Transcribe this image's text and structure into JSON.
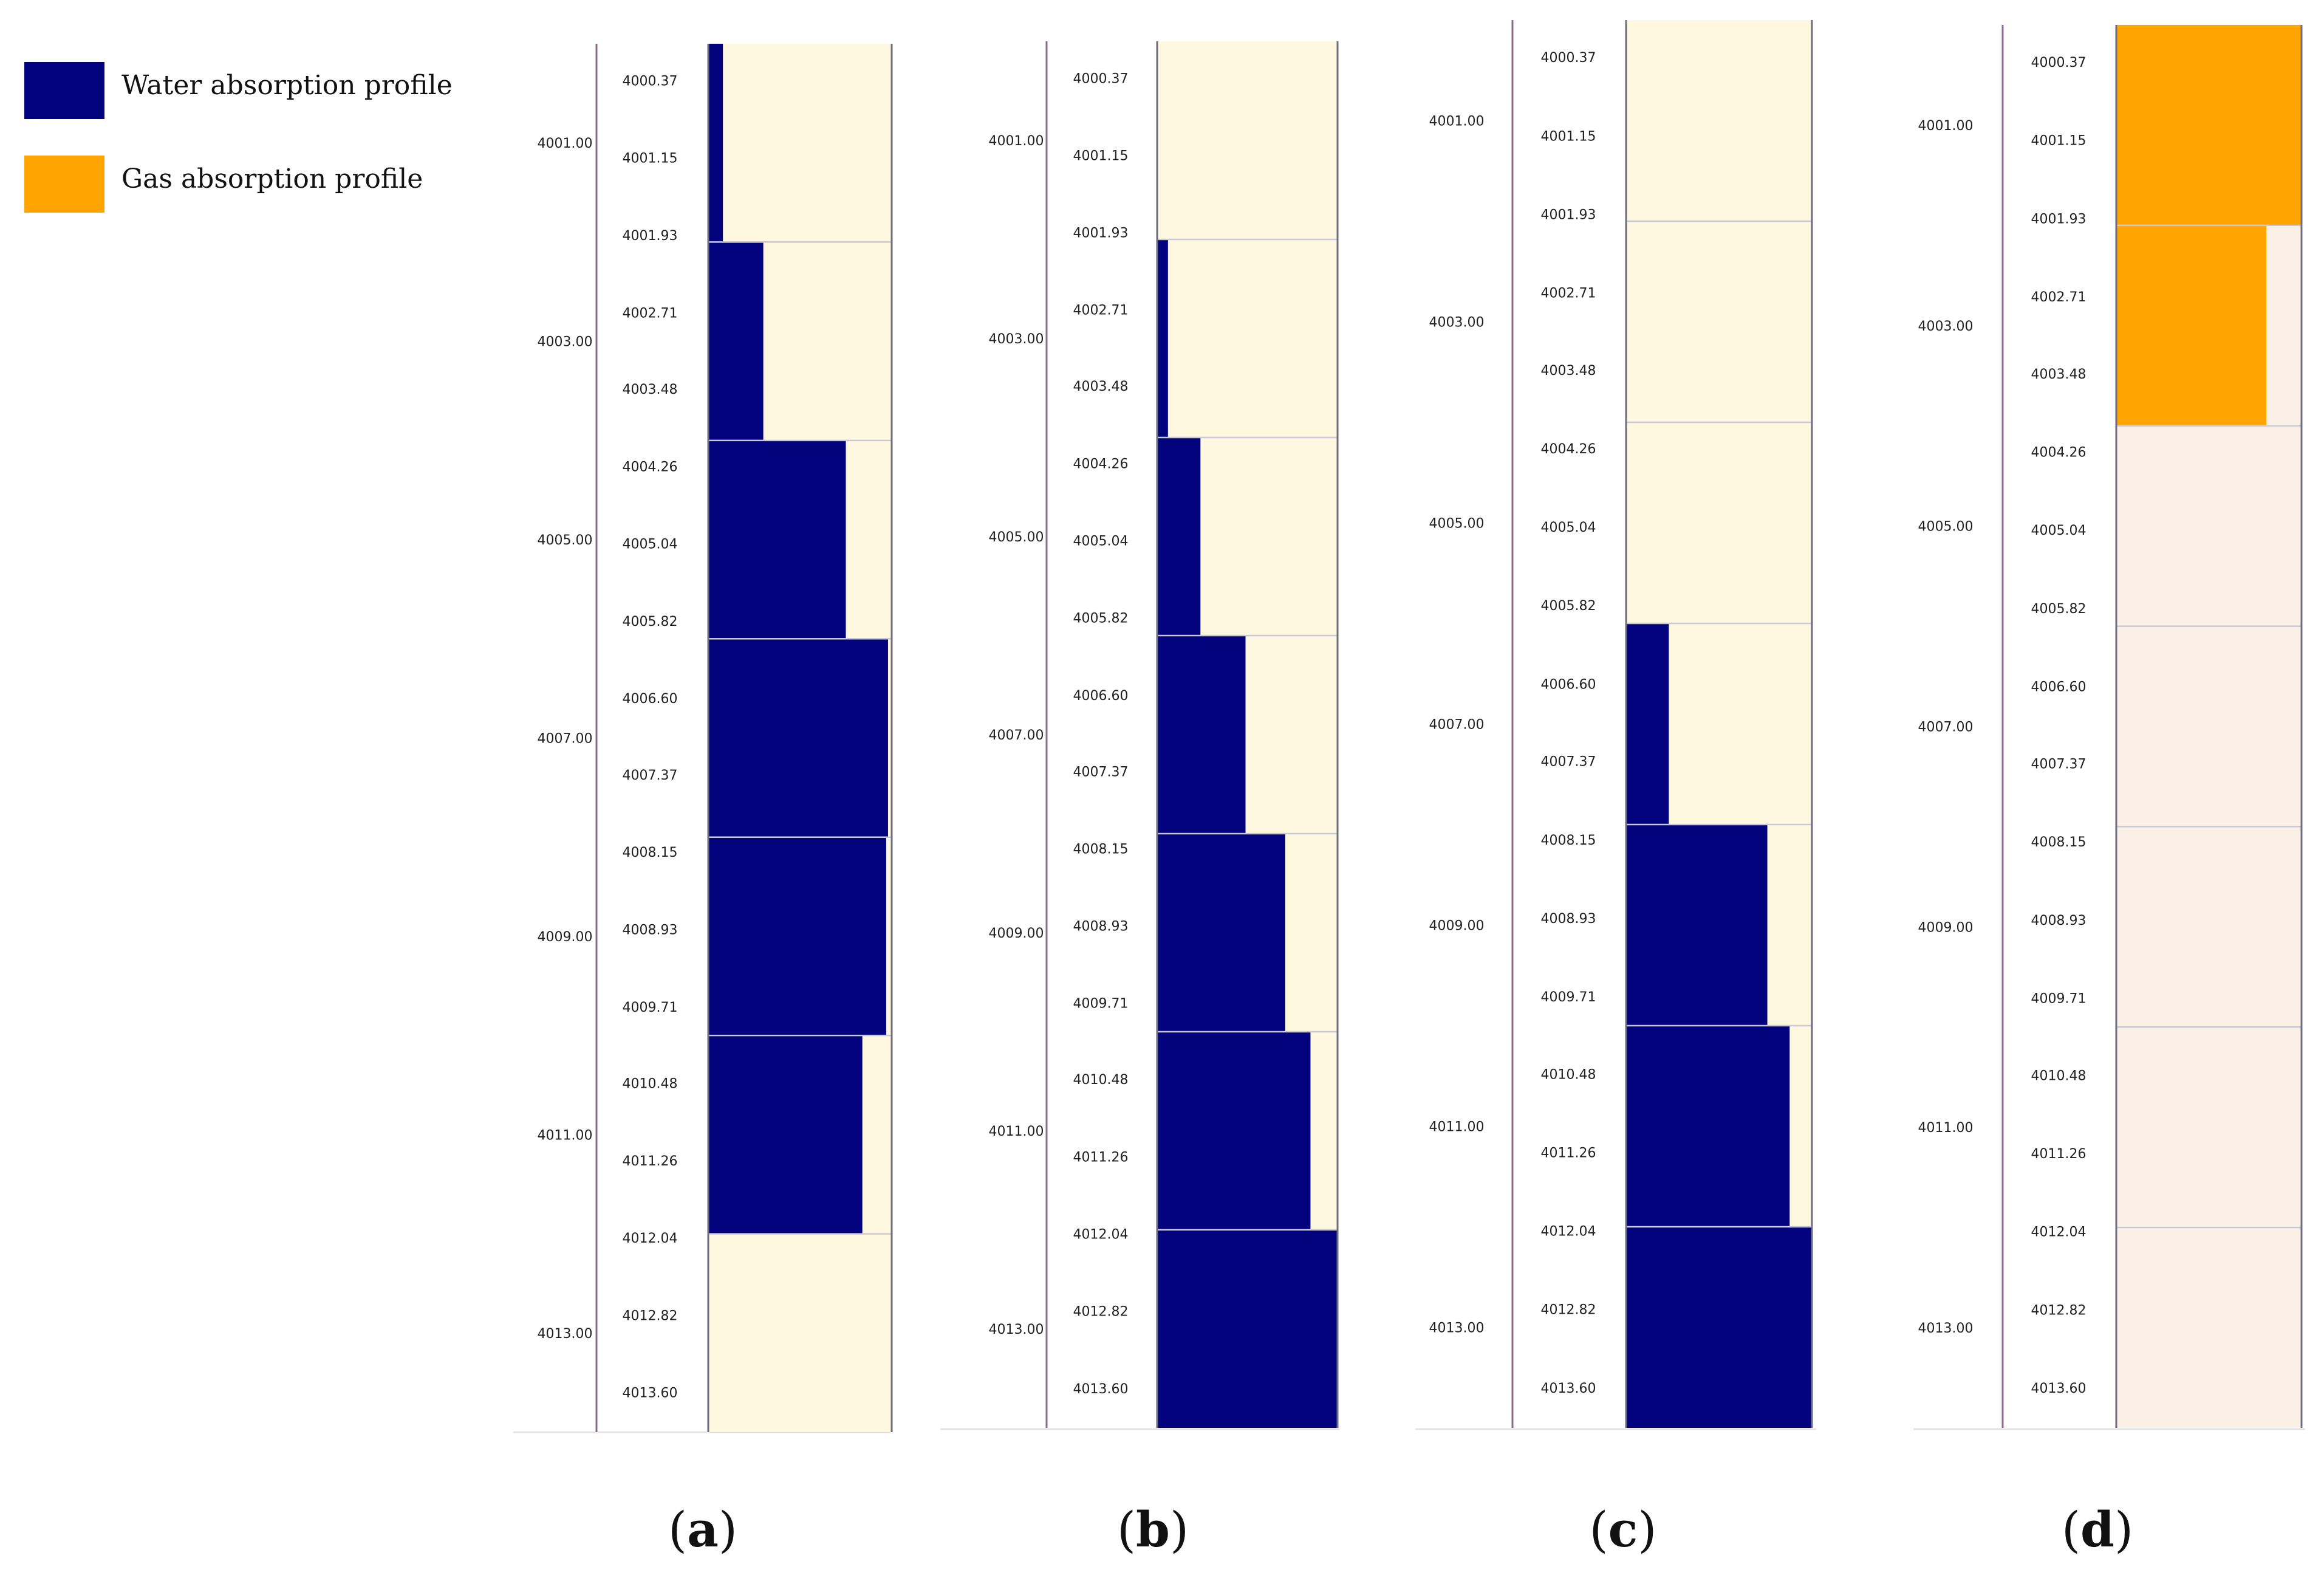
{
  "legend": {
    "water_label": "Water absorption profile",
    "gas_label": "Gas absorption profile",
    "water_color": "#02037D",
    "gas_color": "#FFA400"
  },
  "colors": {
    "cream_bg": "#FFF8E0",
    "peach_bg": "#FAF0E6",
    "divider": "#C8C8D8",
    "depth_line": "#8A6A8A",
    "track_border": "#6E6E80"
  },
  "chart_data": [
    {
      "type": "step-profile",
      "panel": "a",
      "caption": "a",
      "fluid": "water",
      "depth_range": [
        4000.0,
        4014.0
      ],
      "depth_labels": [
        "4001.00",
        "4003.00",
        "4005.00",
        "4007.00",
        "4009.00",
        "4011.00",
        "4013.00"
      ],
      "scale_labels": [
        "4000.37",
        "4001.15",
        "4001.93",
        "4002.71",
        "4003.48",
        "4004.26",
        "4005.04",
        "4005.82",
        "4006.60",
        "4007.37",
        "4008.15",
        "4008.93",
        "4009.71",
        "4010.48",
        "4011.26",
        "4012.04",
        "4012.82",
        "4013.60"
      ],
      "segments": [
        {
          "top": 4000.0,
          "bottom": 4002.0,
          "fraction": 0.08
        },
        {
          "top": 4002.0,
          "bottom": 4004.0,
          "fraction": 0.3
        },
        {
          "top": 4004.0,
          "bottom": 4006.0,
          "fraction": 0.75
        },
        {
          "top": 4006.0,
          "bottom": 4008.0,
          "fraction": 0.98
        },
        {
          "top": 4008.0,
          "bottom": 4010.0,
          "fraction": 0.97
        },
        {
          "top": 4010.0,
          "bottom": 4012.0,
          "fraction": 0.84
        },
        {
          "top": 4012.0,
          "bottom": 4014.0,
          "fraction": 0.0
        }
      ]
    },
    {
      "type": "step-profile",
      "panel": "b",
      "caption": "b",
      "fluid": "water",
      "depth_range": [
        4000.0,
        4014.0
      ],
      "depth_labels": [
        "4001.00",
        "4003.00",
        "4005.00",
        "4007.00",
        "4009.00",
        "4011.00",
        "4013.00"
      ],
      "scale_labels": [
        "4000.37",
        "4001.15",
        "4001.93",
        "4002.71",
        "4003.48",
        "4004.26",
        "4005.04",
        "4005.82",
        "4006.60",
        "4007.37",
        "4008.15",
        "4008.93",
        "4009.71",
        "4010.48",
        "4011.26",
        "4012.04",
        "4012.82",
        "4013.60"
      ],
      "segments": [
        {
          "top": 4000.0,
          "bottom": 4002.0,
          "fraction": 0.0
        },
        {
          "top": 4002.0,
          "bottom": 4004.0,
          "fraction": 0.06
        },
        {
          "top": 4004.0,
          "bottom": 4006.0,
          "fraction": 0.24
        },
        {
          "top": 4006.0,
          "bottom": 4008.0,
          "fraction": 0.49
        },
        {
          "top": 4008.0,
          "bottom": 4010.0,
          "fraction": 0.71
        },
        {
          "top": 4010.0,
          "bottom": 4012.0,
          "fraction": 0.85
        },
        {
          "top": 4012.0,
          "bottom": 4014.0,
          "fraction": 1.0
        }
      ]
    },
    {
      "type": "step-profile",
      "panel": "c",
      "caption": "c",
      "fluid": "water",
      "depth_range": [
        4000.0,
        4014.0
      ],
      "depth_labels": [
        "4001.00",
        "4003.00",
        "4005.00",
        "4007.00",
        "4009.00",
        "4011.00",
        "4013.00"
      ],
      "scale_labels": [
        "4000.37",
        "4001.15",
        "4001.93",
        "4002.71",
        "4003.48",
        "4004.26",
        "4005.04",
        "4005.82",
        "4006.60",
        "4007.37",
        "4008.15",
        "4008.93",
        "4009.71",
        "4010.48",
        "4011.26",
        "4012.04",
        "4012.82",
        "4013.60"
      ],
      "segments": [
        {
          "top": 4000.0,
          "bottom": 4002.0,
          "fraction": 0.0
        },
        {
          "top": 4002.0,
          "bottom": 4004.0,
          "fraction": 0.0
        },
        {
          "top": 4004.0,
          "bottom": 4006.0,
          "fraction": 0.0
        },
        {
          "top": 4006.0,
          "bottom": 4008.0,
          "fraction": 0.23
        },
        {
          "top": 4008.0,
          "bottom": 4010.0,
          "fraction": 0.76
        },
        {
          "top": 4010.0,
          "bottom": 4012.0,
          "fraction": 0.88
        },
        {
          "top": 4012.0,
          "bottom": 4014.0,
          "fraction": 1.0
        }
      ]
    },
    {
      "type": "step-profile",
      "panel": "d",
      "caption": "d",
      "fluid": "gas",
      "depth_range": [
        4000.0,
        4014.0
      ],
      "depth_labels": [
        "4001.00",
        "4003.00",
        "4005.00",
        "4007.00",
        "4009.00",
        "4011.00",
        "4013.00"
      ],
      "scale_labels": [
        "4000.37",
        "4001.15",
        "4001.93",
        "4002.71",
        "4003.48",
        "4004.26",
        "4005.04",
        "4005.82",
        "4006.60",
        "4007.37",
        "4008.15",
        "4008.93",
        "4009.71",
        "4010.48",
        "4011.26",
        "4012.04",
        "4012.82",
        "4013.60"
      ],
      "segments": [
        {
          "top": 4000.0,
          "bottom": 4002.0,
          "fraction": 1.0
        },
        {
          "top": 4002.0,
          "bottom": 4004.0,
          "fraction": 0.81
        },
        {
          "top": 4004.0,
          "bottom": 4006.0,
          "fraction": 0.0
        },
        {
          "top": 4006.0,
          "bottom": 4008.0,
          "fraction": 0.0
        },
        {
          "top": 4008.0,
          "bottom": 4010.0,
          "fraction": 0.0
        },
        {
          "top": 4010.0,
          "bottom": 4012.0,
          "fraction": 0.0
        },
        {
          "top": 4012.0,
          "bottom": 4014.0,
          "fraction": 0.0
        }
      ]
    }
  ]
}
